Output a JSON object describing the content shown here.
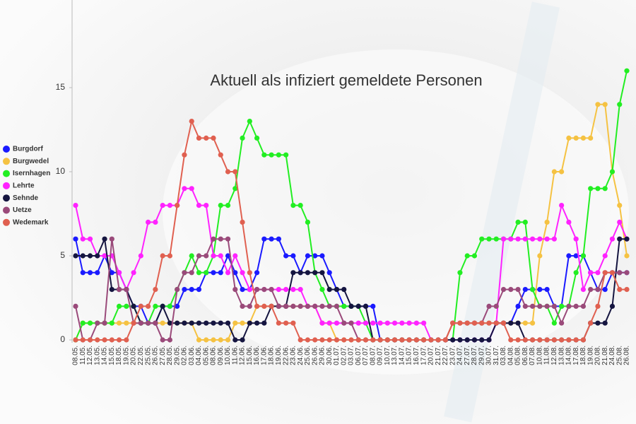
{
  "chart_data": {
    "type": "line",
    "title": "Aktuell als infiziert gemeldete Personen",
    "categories": [
      "08.05.",
      "11.05.",
      "12.05.",
      "13.05.",
      "14.05.",
      "15.05.",
      "18.05.",
      "19.05.",
      "20.05.",
      "22.05.",
      "25.05.",
      "26.05.",
      "27.05.",
      "28.05.",
      "29.05.",
      "02.06.",
      "03.06.",
      "04.06.",
      "05.06.",
      "08.06.",
      "09.06.",
      "10.06.",
      "11.06.",
      "12.06.",
      "15.06.",
      "16.06.",
      "17.06.",
      "18.06.",
      "19.06.",
      "22.06.",
      "23.06.",
      "24.06.",
      "25.06.",
      "26.06.",
      "29.06.",
      "30.06.",
      "01.07.",
      "02.07.",
      "03.07.",
      "06.07.",
      "07.07.",
      "08.07.",
      "09.07.",
      "10.07.",
      "13.07.",
      "14.07.",
      "15.07.",
      "16.07.",
      "17.07.",
      "20.07.",
      "21.07.",
      "22.07.",
      "23.07.",
      "24.07.",
      "27.07.",
      "28.07.",
      "29.07.",
      "30.07.",
      "31.07.",
      "03.08.",
      "04.08.",
      "05.08.",
      "06.08.",
      "07.08.",
      "10.08.",
      "11.08.",
      "12.08.",
      "13.08.",
      "14.08.",
      "17.08.",
      "18.08.",
      "19.08.",
      "20.08.",
      "21.08.",
      "24.08.",
      "25.08.",
      "26.08."
    ],
    "series": [
      {
        "name": "Burgdorf",
        "color": "#1a1aff",
        "values": [
          6,
          4,
          4,
          4,
          5,
          4,
          4,
          3,
          2,
          2,
          1,
          1,
          2,
          2,
          2,
          3,
          3,
          3,
          4,
          4,
          4,
          5,
          4,
          3,
          3,
          4,
          6,
          6,
          6,
          5,
          5,
          4,
          5,
          5,
          5,
          4,
          3,
          2,
          2,
          2,
          2,
          2,
          0,
          0,
          0,
          0,
          0,
          0,
          0,
          0,
          0,
          0,
          0,
          0,
          0,
          0,
          0,
          0,
          1,
          1,
          1,
          2,
          3,
          3,
          3,
          3,
          2,
          2,
          5,
          5,
          5,
          4,
          3,
          3,
          4,
          4,
          4
        ]
      },
      {
        "name": "Burgwedel",
        "color": "#f5c242",
        "values": [
          0,
          1,
          1,
          1,
          1,
          1,
          1,
          1,
          1,
          1,
          1,
          1,
          1,
          1,
          1,
          1,
          1,
          0,
          0,
          0,
          0,
          0,
          1,
          1,
          1,
          2,
          2,
          2,
          2,
          2,
          2,
          2,
          2,
          2,
          1,
          1,
          0,
          0,
          0,
          0,
          0,
          0,
          0,
          0,
          0,
          0,
          0,
          0,
          0,
          0,
          0,
          0,
          1,
          1,
          1,
          1,
          1,
          1,
          1,
          1,
          1,
          1,
          1,
          1,
          5,
          7,
          10,
          10,
          12,
          12,
          12,
          12,
          14,
          14,
          10,
          8,
          5
        ]
      },
      {
        "name": "Isernhagen",
        "color": "#22ee22",
        "values": [
          0,
          1,
          1,
          1,
          1,
          1,
          2,
          2,
          2,
          1,
          1,
          2,
          2,
          2,
          3,
          4,
          5,
          4,
          4,
          5,
          8,
          8,
          9,
          12,
          13,
          12,
          11,
          11,
          11,
          11,
          8,
          8,
          7,
          4,
          3,
          2,
          2,
          2,
          2,
          2,
          1,
          0,
          0,
          0,
          0,
          0,
          0,
          0,
          0,
          0,
          0,
          0,
          0,
          4,
          5,
          5,
          6,
          6,
          6,
          6,
          6,
          7,
          7,
          3,
          2,
          2,
          1,
          2,
          2,
          4,
          5,
          9,
          9,
          9,
          10,
          14,
          16
        ]
      },
      {
        "name": "Lehrte",
        "color": "#ff22ff",
        "values": [
          8,
          6,
          6,
          5,
          5,
          5,
          4,
          3,
          4,
          5,
          7,
          7,
          8,
          8,
          8,
          9,
          9,
          8,
          8,
          5,
          5,
          4,
          5,
          4,
          3,
          3,
          3,
          3,
          3,
          3,
          3,
          3,
          2,
          2,
          1,
          1,
          1,
          1,
          1,
          1,
          1,
          1,
          1,
          1,
          1,
          1,
          1,
          1,
          1,
          0,
          0,
          0,
          0,
          0,
          0,
          0,
          0,
          0,
          1,
          6,
          6,
          6,
          6,
          6,
          6,
          6,
          6,
          8,
          7,
          6,
          3,
          4,
          4,
          5,
          6,
          7,
          6
        ]
      },
      {
        "name": "Sehnde",
        "color": "#151540",
        "values": [
          5,
          5,
          5,
          5,
          6,
          3,
          3,
          3,
          2,
          1,
          1,
          1,
          2,
          1,
          1,
          1,
          1,
          1,
          1,
          1,
          1,
          1,
          0,
          0,
          1,
          1,
          1,
          2,
          2,
          2,
          4,
          4,
          4,
          4,
          4,
          3,
          3,
          3,
          2,
          2,
          2,
          0,
          0,
          0,
          0,
          0,
          0,
          0,
          0,
          0,
          0,
          0,
          0,
          0,
          0,
          0,
          0,
          0,
          1,
          1,
          1,
          1,
          0,
          0,
          0,
          0,
          0,
          0,
          0,
          0,
          0,
          1,
          1,
          1,
          2,
          6,
          6
        ]
      },
      {
        "name": "Uetze",
        "color": "#9a4a7a",
        "values": [
          2,
          0,
          0,
          1,
          1,
          6,
          3,
          3,
          1,
          1,
          1,
          1,
          0,
          0,
          3,
          4,
          4,
          5,
          5,
          6,
          6,
          6,
          3,
          2,
          2,
          3,
          3,
          3,
          2,
          2,
          2,
          2,
          2,
          2,
          2,
          2,
          2,
          1,
          1,
          0,
          0,
          0,
          0,
          0,
          0,
          0,
          0,
          0,
          0,
          0,
          0,
          0,
          1,
          1,
          1,
          1,
          1,
          2,
          2,
          3,
          3,
          3,
          2,
          2,
          2,
          2,
          2,
          1,
          2,
          2,
          2,
          3,
          3,
          4,
          4,
          4,
          4
        ]
      },
      {
        "name": "Wedemark",
        "color": "#e06050",
        "values": [
          0,
          0,
          0,
          0,
          0,
          0,
          0,
          0,
          1,
          2,
          2,
          3,
          5,
          5,
          8,
          11,
          13,
          12,
          12,
          12,
          11,
          10,
          10,
          7,
          4,
          2,
          2,
          2,
          1,
          1,
          1,
          0,
          0,
          0,
          0,
          0,
          0,
          0,
          0,
          0,
          0,
          0,
          0,
          0,
          0,
          0,
          0,
          0,
          0,
          0,
          0,
          0,
          1,
          1,
          1,
          1,
          1,
          1,
          1,
          1,
          0,
          0,
          0,
          0,
          0,
          0,
          0,
          0,
          0,
          0,
          0,
          1,
          2,
          4,
          4,
          3,
          3
        ]
      }
    ],
    "ylim": [
      0,
      20
    ],
    "yticks": [
      0,
      5,
      10,
      15
    ],
    "legend": "left"
  }
}
